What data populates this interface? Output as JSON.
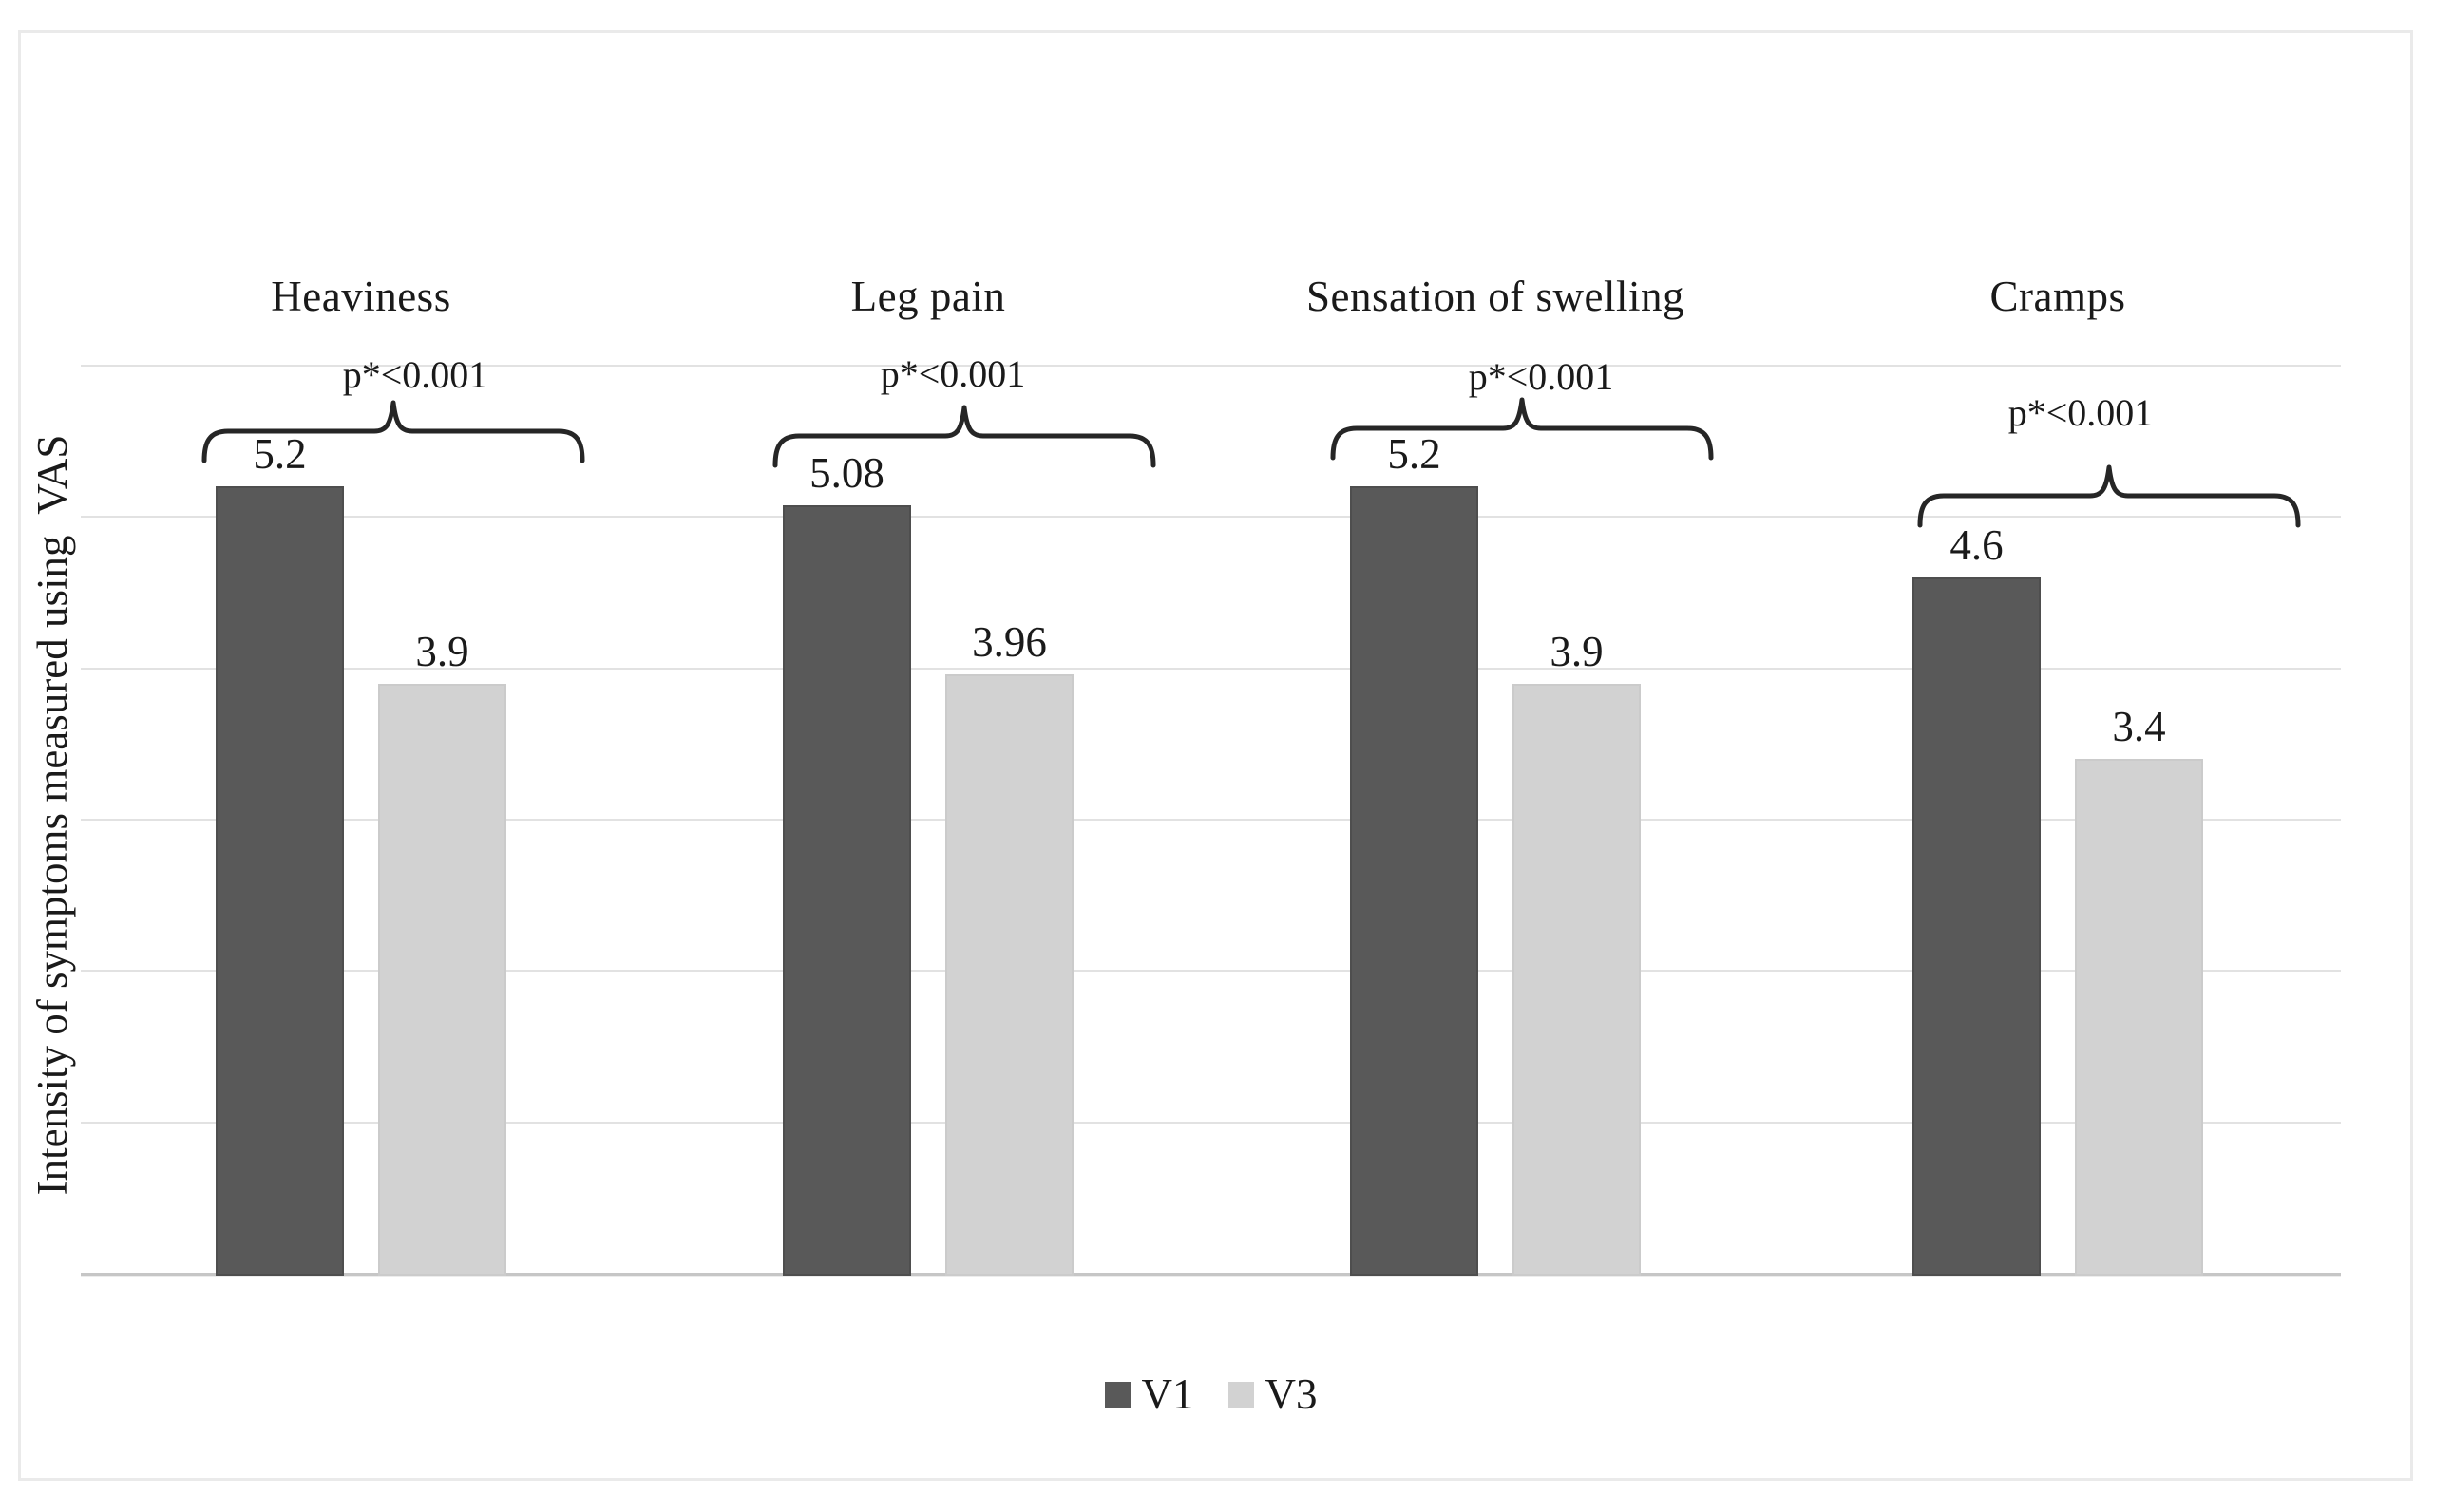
{
  "chart_data": {
    "type": "bar",
    "categories": [
      "Heaviness",
      "Leg pain",
      "Sensation of swelling",
      "Cramps"
    ],
    "series": [
      {
        "name": "V1",
        "color": "#595959",
        "values": [
          5.2,
          5.08,
          5.2,
          4.6
        ],
        "labels": [
          "5.2",
          "5.08",
          "5.2",
          "4.6"
        ]
      },
      {
        "name": "V3",
        "color": "#d2d2d2",
        "values": [
          3.9,
          3.96,
          3.9,
          3.4
        ],
        "labels": [
          "3.9",
          "3.96",
          "3.9",
          "3.4"
        ]
      }
    ],
    "annotations": [
      "p*<0.001",
      "p*<0.001",
      "p*<0.001",
      "p*<0.001"
    ],
    "ylabel": "Intensity of symptoms measured using  VAS",
    "ylim": [
      0,
      6
    ],
    "gridline_step": 1,
    "grid": true,
    "legend_position": "bottom",
    "colors": {
      "bar_dark": "#595959",
      "bar_light": "#d2d2d2",
      "gridline": "#e2e2e2",
      "axis_line": "#c6c6c6",
      "text": "#1a1a1a",
      "frame_border": "#eaeaea"
    }
  }
}
